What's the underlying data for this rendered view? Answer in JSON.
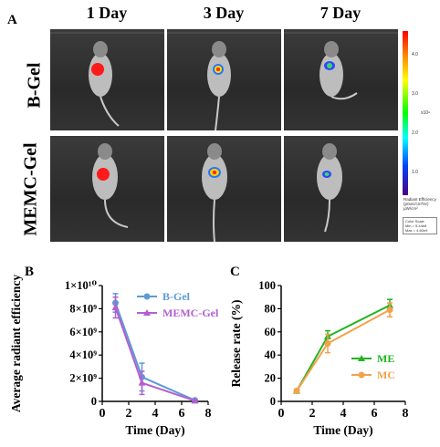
{
  "panel_a": {
    "letter": "A",
    "days": [
      "1 Day",
      "3 Day",
      "7 Day"
    ],
    "rows": [
      "B-Gel",
      "MEMC-Gel"
    ],
    "colorbar": {
      "ticks": [
        "4.0",
        "3.0",
        "2.0",
        "1.0"
      ],
      "exponent": "x10⁹",
      "title_lines": [
        "Radiant Efficiency",
        "(p/sec/cm²/sr)",
        "μW/cm²"
      ],
      "scale_lines": [
        "Color Scale",
        "Min = 5.44e8",
        "Max = 4.60e9"
      ]
    }
  },
  "chart_data": [
    {
      "letter": "B",
      "type": "line",
      "xlabel": "Time (Day)",
      "ylabel": "Average radiant efficiency",
      "xlim": [
        0,
        8
      ],
      "ylim": [
        0,
        10
      ],
      "x_ticks": [
        "0",
        "2",
        "4",
        "6",
        "8"
      ],
      "y_ticks": [
        "0",
        "2×10⁹",
        "4×10⁹",
        "6×10⁹",
        "8×10⁹",
        "1×10¹⁰"
      ],
      "series": [
        {
          "name": "B-Gel",
          "color": "#5b9bd5",
          "marker": "circle",
          "x": [
            1,
            3,
            7
          ],
          "y": [
            8.5,
            2.1,
            0.1
          ],
          "err": [
            0.8,
            1.2,
            0.05
          ]
        },
        {
          "name": "MEMC-Gel",
          "color": "#b45fd0",
          "marker": "triangle",
          "x": [
            1,
            3,
            7
          ],
          "y": [
            8.1,
            1.6,
            0.05
          ],
          "err": [
            0.9,
            1.0,
            0.05
          ]
        }
      ],
      "legend": "top-right"
    },
    {
      "letter": "C",
      "type": "line",
      "xlabel": "Time (Day)",
      "ylabel": "Release rate (%)",
      "xlim": [
        0,
        8
      ],
      "ylim": [
        0,
        100
      ],
      "x_ticks": [
        "0",
        "2",
        "4",
        "6",
        "8"
      ],
      "y_ticks": [
        "0",
        "20",
        "40",
        "60",
        "80",
        "100"
      ],
      "series": [
        {
          "name": "ME",
          "color": "#22b522",
          "marker": "triangle",
          "x": [
            1,
            3,
            7
          ],
          "y": [
            9,
            56,
            83
          ],
          "err": [
            1.5,
            5,
            5
          ]
        },
        {
          "name": "MC",
          "color": "#f5a04a",
          "marker": "circle",
          "x": [
            1,
            3,
            7
          ],
          "y": [
            9,
            50,
            79
          ],
          "err": [
            1.5,
            8,
            6
          ]
        }
      ],
      "legend": "bottom-right"
    }
  ]
}
